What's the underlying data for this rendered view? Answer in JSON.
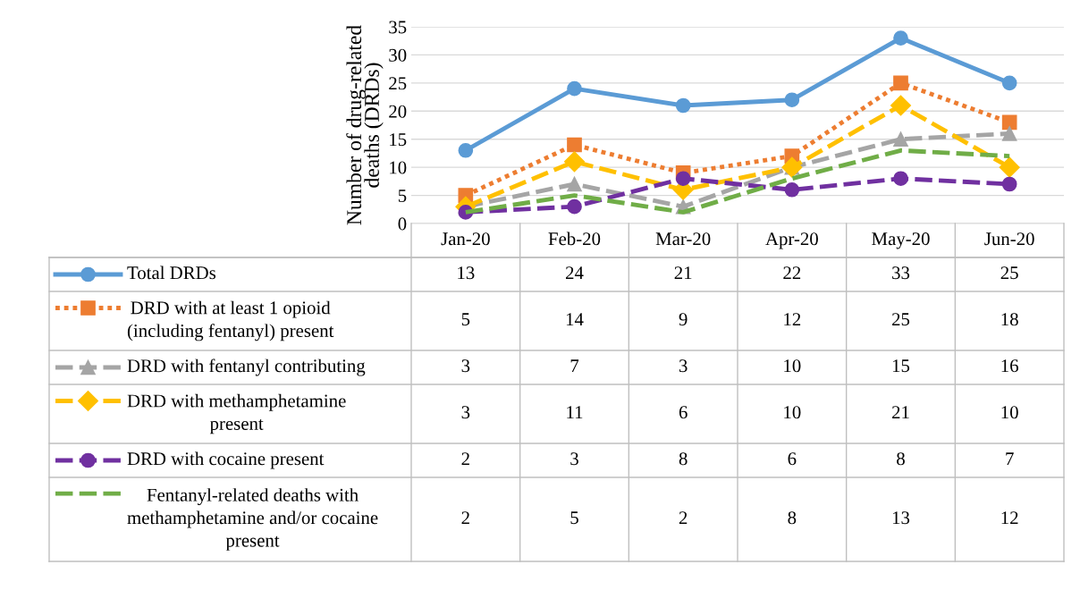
{
  "chart_data": {
    "type": "line",
    "ylabel": "Number of drug-related deaths (DRDs)",
    "categories": [
      "Jan-20",
      "Feb-20",
      "Mar-20",
      "Apr-20",
      "May-20",
      "Jun-20"
    ],
    "ylim": [
      0,
      35
    ],
    "yticks": [
      0,
      5,
      10,
      15,
      20,
      25,
      30,
      35
    ],
    "grid": "y",
    "legend": "bottom",
    "data_labels": true,
    "series": [
      {
        "name": "Total DRDs",
        "color": "#5b9bd5",
        "marker": "circle",
        "line_style": "solid",
        "values": [
          13,
          24,
          21,
          22,
          33,
          25
        ]
      },
      {
        "name": "DRD with at least 1 opioid (including fentanyl) present",
        "color": "#ed7d31",
        "marker": "square",
        "line_style": "dotted",
        "values": [
          5,
          14,
          9,
          12,
          25,
          18
        ]
      },
      {
        "name": "DRD with fentanyl contributing",
        "color": "#a5a5a5",
        "marker": "triangle",
        "line_style": "dashed",
        "values": [
          3,
          7,
          3,
          10,
          15,
          16
        ]
      },
      {
        "name": "DRD with methamphetamine present",
        "color": "#ffc000",
        "marker": "diamond",
        "line_style": "dashed",
        "values": [
          3,
          11,
          6,
          10,
          21,
          10
        ]
      },
      {
        "name": "DRD with cocaine present",
        "color": "#7030a0",
        "marker": "circle",
        "line_style": "dashed",
        "values": [
          2,
          3,
          8,
          6,
          8,
          7
        ]
      },
      {
        "name": "Fentanyl-related deaths with methamphetamine and/or cocaine present",
        "color": "#70ad47",
        "marker": "none",
        "line_style": "dashed",
        "values": [
          2,
          5,
          2,
          8,
          13,
          12
        ]
      }
    ]
  }
}
